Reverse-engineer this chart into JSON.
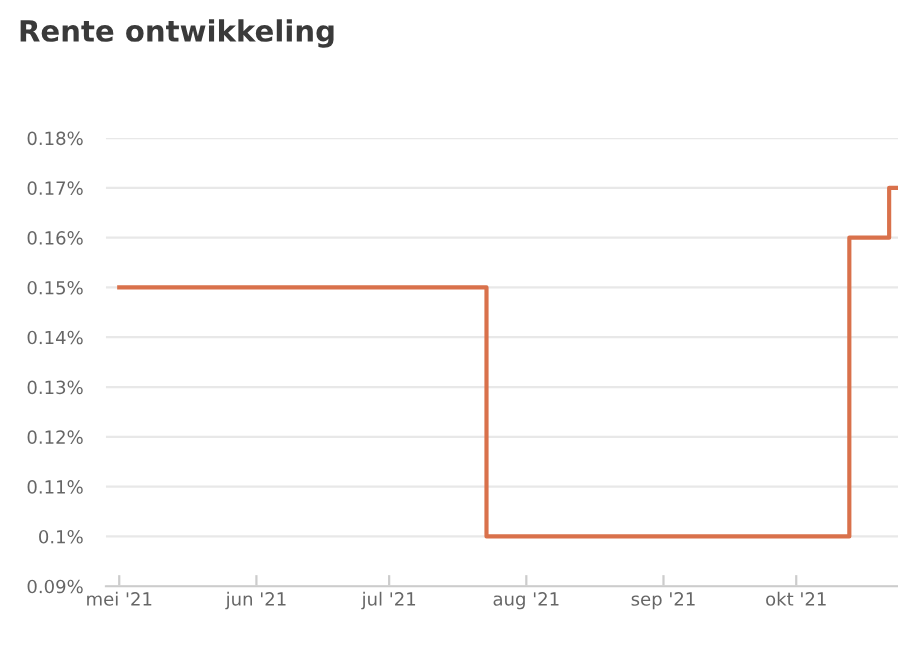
{
  "chart_data": {
    "type": "step",
    "title": "Rente ontwikkeling",
    "x": [
      "2021-05-01",
      "2021-07-23",
      "2021-10-13",
      "2021-10-22",
      "2021-10-24"
    ],
    "series": [
      {
        "color": "#d9714b",
        "values": [
          0.15,
          0.1,
          0.16,
          0.17,
          0.17
        ]
      }
    ],
    "xlim": [
      "2021-04-28",
      "2021-10-24"
    ],
    "xticks": [
      {
        "value": "2021-05-01",
        "label": "mei '21"
      },
      {
        "value": "2021-06-01",
        "label": "jun '21"
      },
      {
        "value": "2021-07-01",
        "label": "jul '21"
      },
      {
        "value": "2021-08-01",
        "label": "aug '21"
      },
      {
        "value": "2021-09-01",
        "label": "sep '21"
      },
      {
        "value": "2021-10-01",
        "label": "okt '21"
      }
    ],
    "ylim": [
      0.09,
      0.18
    ],
    "yticks": [
      {
        "value": 0.09,
        "label": "0.09%"
      },
      {
        "value": 0.1,
        "label": "0.1%"
      },
      {
        "value": 0.11,
        "label": "0.11%"
      },
      {
        "value": 0.12,
        "label": "0.12%"
      },
      {
        "value": 0.13,
        "label": "0.13%"
      },
      {
        "value": 0.14,
        "label": "0.14%"
      },
      {
        "value": 0.15,
        "label": "0.15%"
      },
      {
        "value": 0.16,
        "label": "0.16%"
      },
      {
        "value": 0.17,
        "label": "0.17%"
      },
      {
        "value": 0.18,
        "label": "0.18%"
      }
    ],
    "grid": "y",
    "marker": "none",
    "line_style": "solid"
  }
}
